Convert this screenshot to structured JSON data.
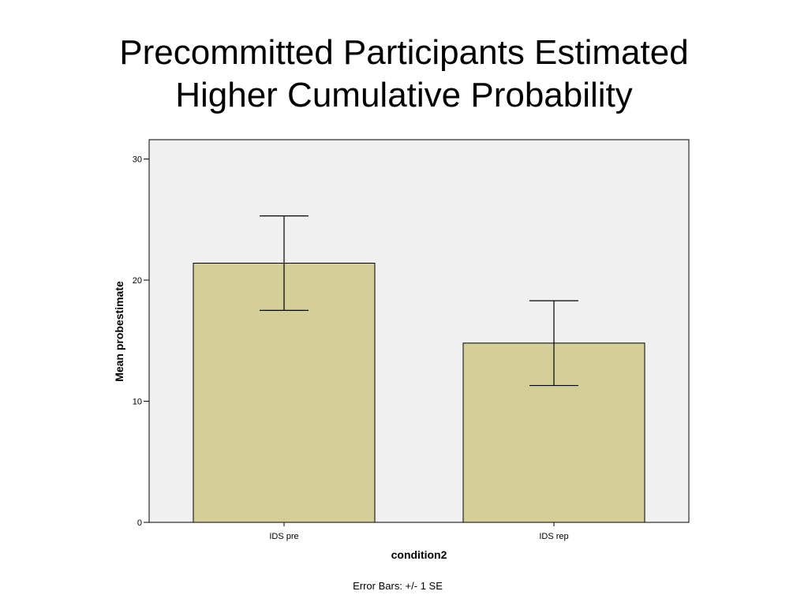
{
  "slide": {
    "title_line1": "Precommitted Participants Estimated",
    "title_line2": "Higher Cumulative Probability"
  },
  "chart_data": {
    "type": "bar",
    "categories": [
      "IDS pre",
      "IDS rep"
    ],
    "values": [
      21.4,
      14.8
    ],
    "error_bars": {
      "type": "+/- 1 SE",
      "lower": [
        17.5,
        11.3
      ],
      "upper": [
        25.3,
        18.3
      ]
    },
    "xlabel": "condition2",
    "ylabel": "Mean probestimate",
    "ylim": [
      0,
      30
    ],
    "yticks": [
      0,
      10,
      20,
      30
    ],
    "grid": false,
    "footnote": "Error Bars: +/- 1 SE",
    "bar_color": "#d4ce98",
    "plot_background": "#f0f0f0"
  }
}
